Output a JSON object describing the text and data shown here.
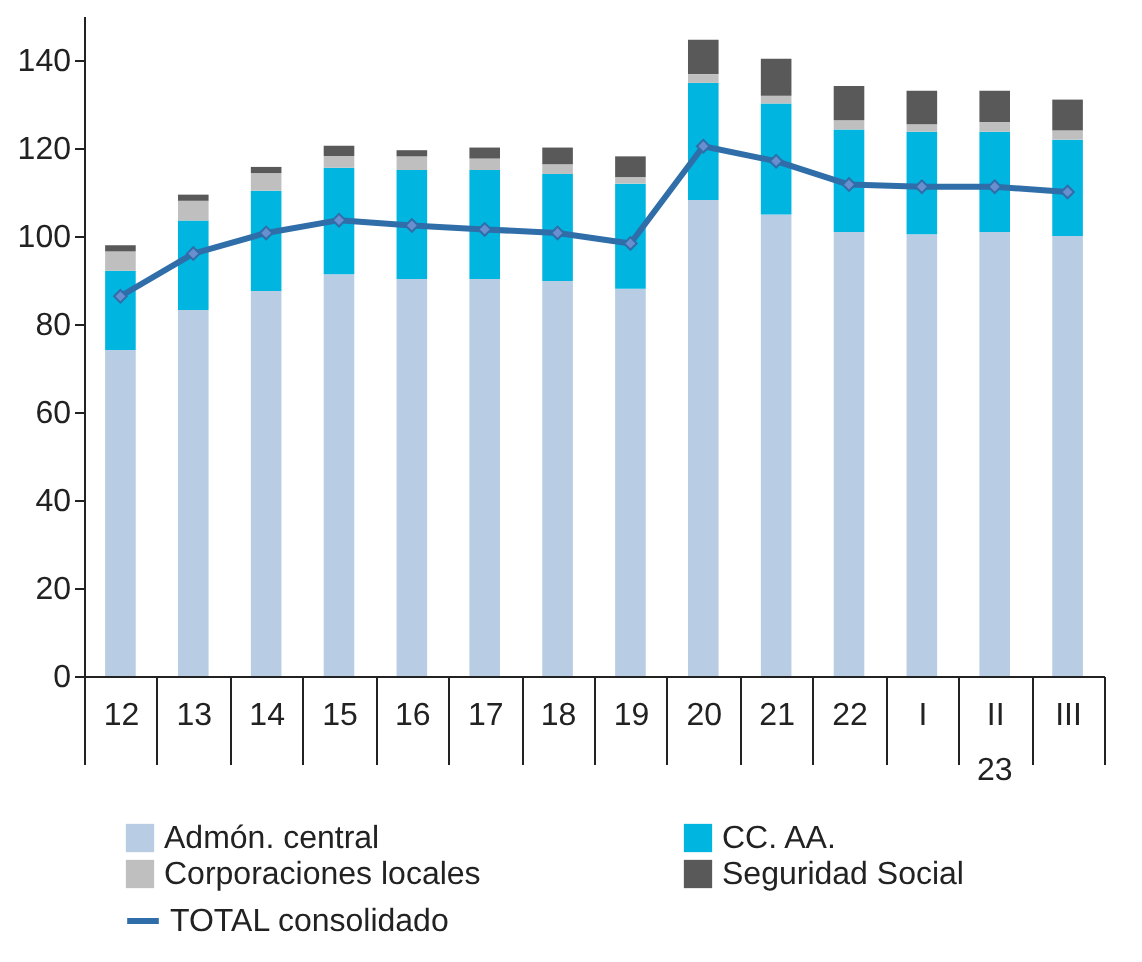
{
  "chart_data": {
    "type": "bar",
    "stacked": true,
    "categories": [
      "12",
      "13",
      "14",
      "15",
      "16",
      "17",
      "18",
      "19",
      "20",
      "21",
      "22",
      "I",
      "II",
      "III"
    ],
    "series": [
      {
        "name": "Admón. central",
        "color": "#b8cce4",
        "values": [
          74.1,
          83.2,
          87.5,
          91.3,
          90.2,
          90.2,
          89.8,
          88.0,
          108.2,
          104.9,
          100.9,
          100.4,
          100.9,
          100.0
        ]
      },
      {
        "name": "CC. AA.",
        "color": "#00b6e0",
        "values": [
          18.0,
          20.3,
          22.8,
          24.2,
          24.8,
          24.8,
          24.3,
          23.9,
          26.6,
          25.2,
          23.3,
          23.3,
          22.8,
          21.9
        ]
      },
      {
        "name": "Corporaciones locales",
        "color": "#bfbfbf",
        "values": [
          4.4,
          4.5,
          4.0,
          2.7,
          3.1,
          2.6,
          2.2,
          1.5,
          2.0,
          1.8,
          2.1,
          1.7,
          2.2,
          2.1
        ]
      },
      {
        "name": "Seguridad Social",
        "color": "#595959",
        "values": [
          1.4,
          1.4,
          1.4,
          2.3,
          1.4,
          2.5,
          3.8,
          4.7,
          7.8,
          8.4,
          7.8,
          7.6,
          7.1,
          7.0
        ]
      },
      {
        "name": "TOTAL consolidado",
        "type": "line",
        "color": "#2f6ea8",
        "marker": "diamond",
        "line_style": "solid",
        "values": [
          86.3,
          96.0,
          100.7,
          103.6,
          102.4,
          101.5,
          100.7,
          98.3,
          120.4,
          117.0,
          111.7,
          111.2,
          111.2,
          110.0
        ]
      }
    ],
    "ylim": [
      0,
      150
    ],
    "yticks": [
      0,
      20,
      40,
      60,
      80,
      100,
      120,
      140
    ],
    "grid": false,
    "legend": "bottom",
    "annotations": [
      "23"
    ]
  }
}
